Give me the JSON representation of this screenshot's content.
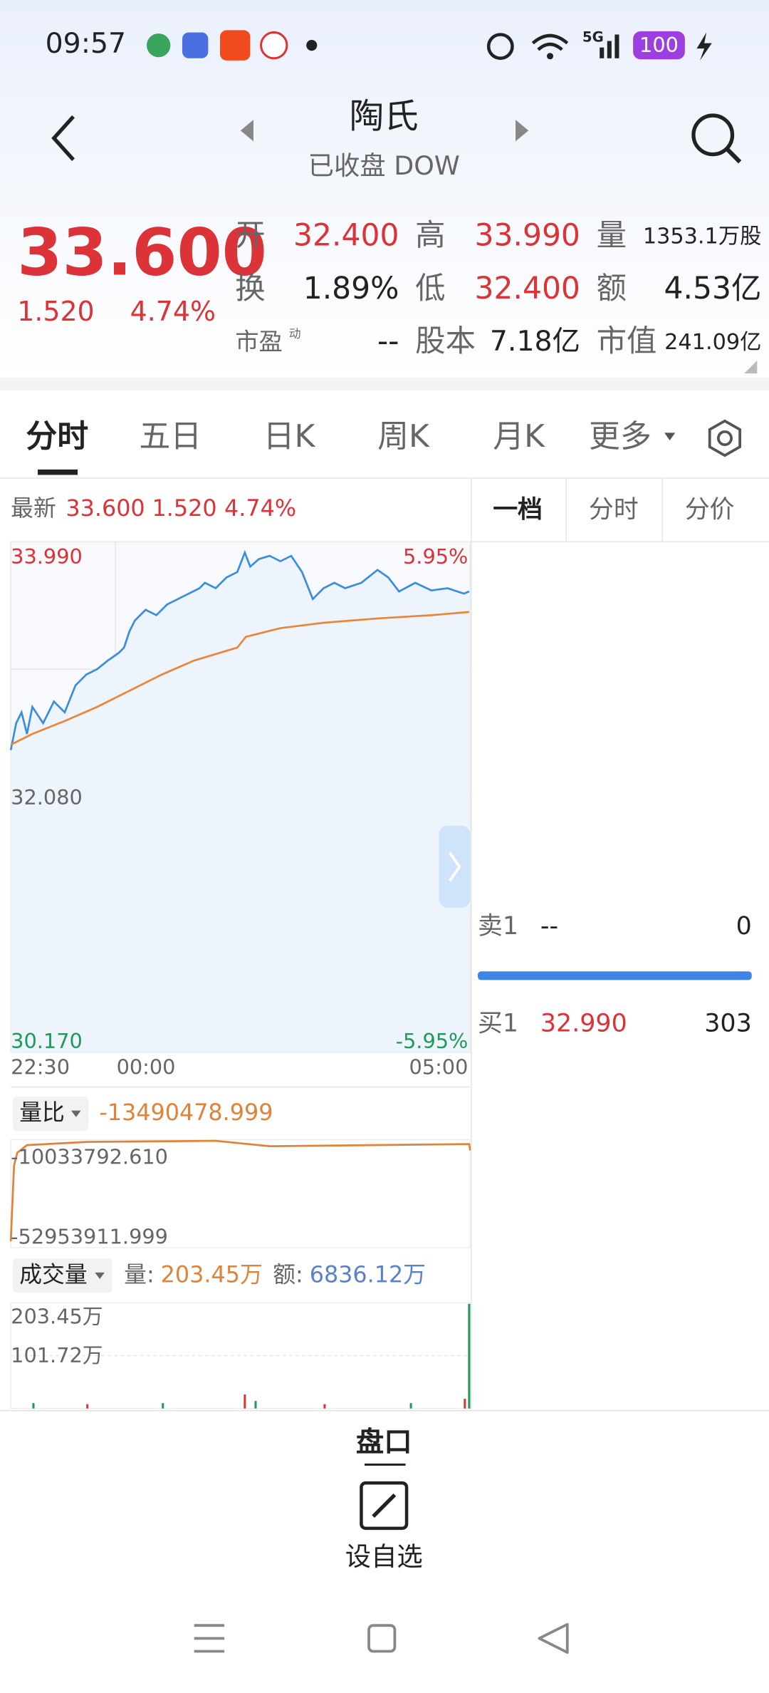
{
  "status_bar": {
    "time": "09:57",
    "network": "5G",
    "battery": "100"
  },
  "header": {
    "title": "陶氏",
    "subtitle": "已收盘 DOW"
  },
  "quote": {
    "price": "33.600",
    "change": "1.520",
    "change_pct": "4.74%",
    "stats": [
      {
        "label": "开",
        "value": "32.400"
      },
      {
        "label": "高",
        "value": "33.990"
      },
      {
        "label": "量",
        "value": "1353.1万股"
      },
      {
        "label": "换",
        "value": "1.89%"
      },
      {
        "label": "低",
        "value": "32.400"
      },
      {
        "label": "额",
        "value": "4.53亿"
      },
      {
        "label": "市盈",
        "sup": "动",
        "value": "--"
      },
      {
        "label": "股本",
        "value": "7.18亿"
      },
      {
        "label": "市值",
        "value": "241.09亿"
      }
    ]
  },
  "tabs": [
    "分时",
    "五日",
    "日K",
    "周K",
    "月K",
    "更多"
  ],
  "intraday": {
    "latest_label": "最新",
    "latest": "33.600",
    "change": "1.520",
    "change_pct": "4.74%",
    "y_top": "33.990",
    "top_pct": "5.95%",
    "y_mid": "32.080",
    "y_bottom": "30.170",
    "bottom_pct": "-5.95%",
    "x_labels": [
      "22:30",
      "00:00",
      "05:00"
    ]
  },
  "volume_ratio": {
    "label": "量比",
    "value": "-13490478.999",
    "top": "-10033792.610",
    "bottom": "-52953911.999"
  },
  "volume": {
    "label": "成交量",
    "vol_label": "量:",
    "vol": "203.45万",
    "amt_label": "额:",
    "amt": "6836.12万",
    "ticks": [
      "203.45万",
      "101.72万"
    ]
  },
  "order_book": {
    "tabs": [
      "一档",
      "分时",
      "分价"
    ],
    "sell": {
      "label": "卖1",
      "price": "--",
      "size": "0"
    },
    "buy": {
      "label": "买1",
      "price": "32.990",
      "size": "303"
    }
  },
  "bottom": {
    "panel": "盘口",
    "watchlist": "设自选"
  }
}
